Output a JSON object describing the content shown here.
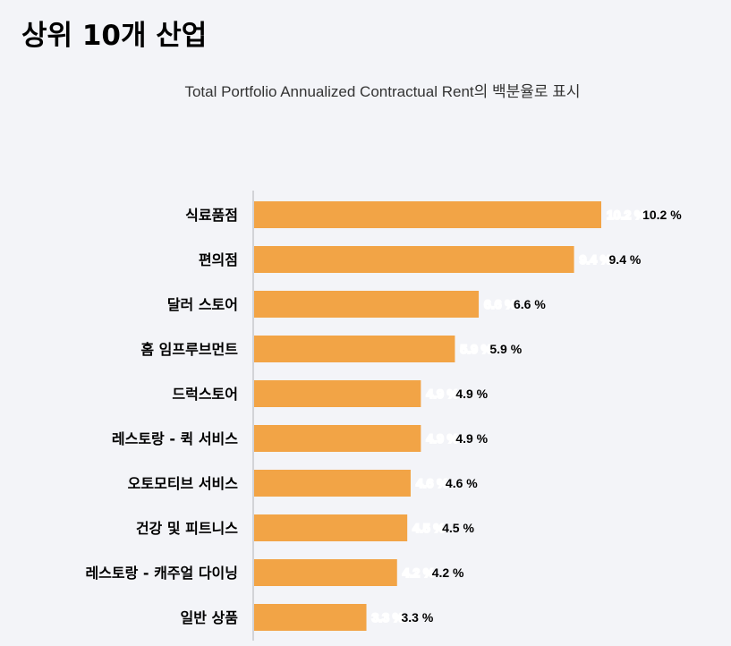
{
  "chart_data": {
    "type": "bar",
    "orientation": "horizontal",
    "title": "상위 10개 산업",
    "subtitle": "Total Portfolio Annualized Contractual Rent의 백분율로 표시",
    "categories": [
      "식료품점",
      "편의점",
      "달러 스토어",
      "홈 임프루브먼트",
      "드럭스토어",
      "레스토랑 - 퀵 서비스",
      "오토모티브 서비스",
      "건강 및 피트니스",
      "레스토랑 - 캐주얼 다이닝",
      "일반 상품"
    ],
    "values": [
      10.2,
      9.4,
      6.6,
      5.9,
      4.9,
      4.9,
      4.6,
      4.5,
      4.2,
      3.3
    ],
    "value_labels": [
      "10.2 %",
      "9.4 %",
      "6.6 %",
      "5.9 %",
      "4.9 %",
      "4.9 %",
      "4.6 %",
      "4.5 %",
      "4.2 %",
      "3.3 %"
    ],
    "xlim": [
      0,
      10.2
    ],
    "bar_color": "#f2a446",
    "axis_color": "#c8c8cc",
    "grid": false,
    "legend": "none"
  }
}
